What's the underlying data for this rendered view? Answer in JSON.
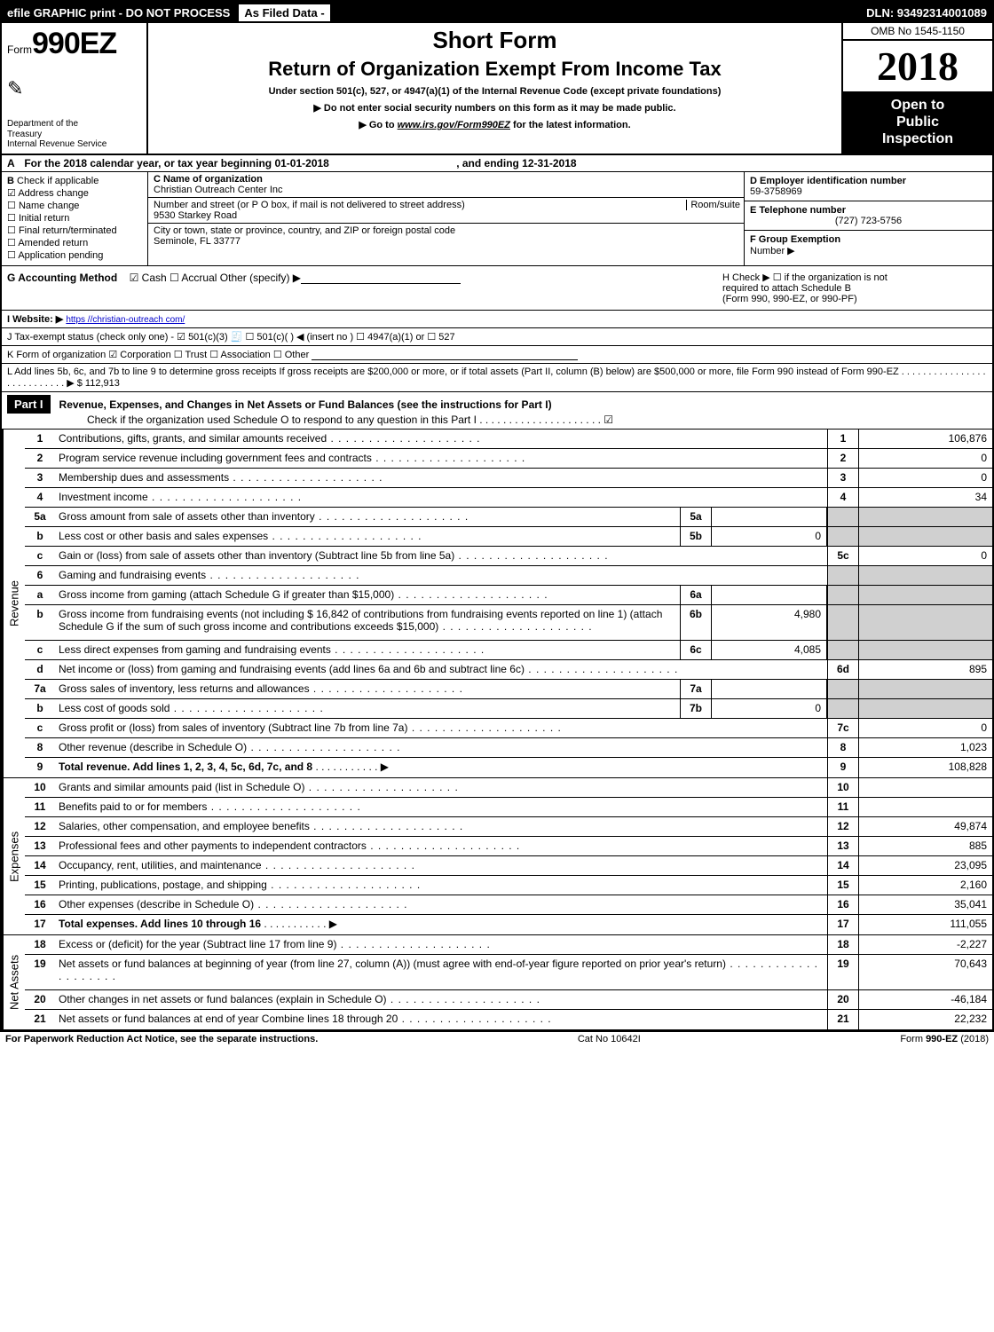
{
  "topbar": {
    "left": "efile GRAPHIC print - DO NOT PROCESS",
    "mid": "As Filed Data -",
    "right": "DLN: 93492314001089"
  },
  "header": {
    "form_prefix": "Form",
    "form_number": "990EZ",
    "dept1": "Department of the",
    "dept2": "Treasury",
    "dept3": "Internal Revenue Service",
    "short_form": "Short Form",
    "return_title": "Return of Organization Exempt From Income Tax",
    "sub1": "Under section 501(c), 527, or 4947(a)(1) of the Internal Revenue Code (except private foundations)",
    "sub2": "▶ Do not enter social security numbers on this form as it may be made public.",
    "sub3_pre": "▶ Go to ",
    "sub3_link": "www.irs.gov/Form990EZ",
    "sub3_post": " for the latest information.",
    "omb": "OMB No 1545-1150",
    "year": "2018",
    "open1": "Open to",
    "open2": "Public",
    "open3": "Inspection"
  },
  "rowA": {
    "label": "A",
    "text1": "For the 2018 calendar year, or tax year beginning 01-01-2018",
    "text2": ", and ending 12-31-2018"
  },
  "B": {
    "label": "B",
    "head": "Check if applicable",
    "items": [
      "Address change",
      "Name change",
      "Initial return",
      "Final return/terminated",
      "Amended return",
      "Application pending"
    ],
    "checked_idx": 0
  },
  "C": {
    "name_label": "C Name of organization",
    "name": "Christian Outreach Center Inc",
    "addr_label": "Number and street (or P O box, if mail is not delivered to street address)",
    "room_label": "Room/suite",
    "addr": "9530 Starkey Road",
    "city_label": "City or town, state or province, country, and ZIP or foreign postal code",
    "city": "Seminole, FL 33777"
  },
  "D": {
    "d_label": "D Employer identification number",
    "d_value": "59-3758969",
    "e_label": "E Telephone number",
    "e_value": "(727) 723-5756",
    "f_label": "F Group Exemption",
    "f_label2": "Number   ▶"
  },
  "G": {
    "label": "G Accounting Method",
    "opts": "☑ Cash   ☐ Accrual   Other (specify) ▶"
  },
  "H": {
    "line1": "H   Check ▶  ☐ if the organization is not",
    "line2": "required to attach Schedule B",
    "line3": "(Form 990, 990-EZ, or 990-PF)"
  },
  "I": {
    "label": "I Website: ▶",
    "link": "https //christian-outreach com/"
  },
  "J": {
    "text": "J Tax-exempt status (check only one) - ☑ 501(c)(3) 🧾 ☐ 501(c)( ) ◀ (insert no ) ☐ 4947(a)(1) or ☐ 527"
  },
  "K": {
    "text": "K Form of organization    ☑ Corporation  ☐ Trust  ☐ Association  ☐ Other"
  },
  "L": {
    "text": "L Add lines 5b, 6c, and 7b to line 9 to determine gross receipts  If gross receipts are $200,000 or more, or if total assets (Part II, column (B) below) are $500,000 or more, file Form 990 instead of Form 990-EZ  .  .  .  .  .  .  .  .  .  .  .  .  .  .  .  .  .  .  .  .  .  .  .  .  .  .  .  ▶ $ 112,913"
  },
  "PartI": {
    "hdr": "Part I",
    "title": "Revenue, Expenses, and Changes in Net Assets or Fund Balances (see the instructions for Part I)",
    "sub": "Check if the organization used Schedule O to respond to any question in this Part I .  .  .  .  .  .  .  .  .  .  .  .  .  .  .  .  .  .  .  .  .  ☑"
  },
  "sections": {
    "revenue_label": "Revenue",
    "expenses_label": "Expenses",
    "netassets_label": "Net Assets"
  },
  "revenue": [
    {
      "n": "1",
      "d": "Contributions, gifts, grants, and similar amounts received",
      "rn": "1",
      "ra": "106,876"
    },
    {
      "n": "2",
      "d": "Program service revenue including government fees and contracts",
      "rn": "2",
      "ra": "0"
    },
    {
      "n": "3",
      "d": "Membership dues and assessments",
      "rn": "3",
      "ra": "0"
    },
    {
      "n": "4",
      "d": "Investment income",
      "rn": "4",
      "ra": "34"
    },
    {
      "n": "5a",
      "d": "Gross amount from sale of assets other than inventory",
      "mn": "5a",
      "ma": "",
      "greyR": true
    },
    {
      "n": "b",
      "d": "Less cost or other basis and sales expenses",
      "mn": "5b",
      "ma": "0",
      "greyR": true
    },
    {
      "n": "c",
      "d": "Gain or (loss) from sale of assets other than inventory (Subtract line 5b from line 5a)",
      "rn": "5c",
      "ra": "0"
    },
    {
      "n": "6",
      "d": "Gaming and fundraising events",
      "greyR": true,
      "greyM": true,
      "noMid": true
    },
    {
      "n": "a",
      "d": "Gross income from gaming (attach Schedule G if greater than $15,000)",
      "mn": "6a",
      "ma": "",
      "greyR": true
    },
    {
      "n": "b",
      "d": "Gross income from fundraising events (not including $  16,842          of contributions from fundraising events reported on line 1) (attach Schedule G if the sum of such gross income and contributions exceeds $15,000)",
      "mn": "6b",
      "ma": "4,980",
      "greyR": true,
      "tall": true
    },
    {
      "n": "c",
      "d": "Less direct expenses from gaming and fundraising events",
      "mn": "6c",
      "ma": "4,085",
      "greyR": true
    },
    {
      "n": "d",
      "d": "Net income or (loss) from gaming and fundraising events (add lines 6a and 6b and subtract line 6c)",
      "rn": "6d",
      "ra": "895"
    },
    {
      "n": "7a",
      "d": "Gross sales of inventory, less returns and allowances",
      "mn": "7a",
      "ma": "",
      "greyR": true
    },
    {
      "n": "b",
      "d": "Less cost of goods sold",
      "mn": "7b",
      "ma": "0",
      "greyR": true
    },
    {
      "n": "c",
      "d": "Gross profit or (loss) from sales of inventory (Subtract line 7b from line 7a)",
      "rn": "7c",
      "ra": "0"
    },
    {
      "n": "8",
      "d": "Other revenue (describe in Schedule O)",
      "rn": "8",
      "ra": "1,023"
    },
    {
      "n": "9",
      "d": "Total revenue. Add lines 1, 2, 3, 4, 5c, 6d, 7c, and 8",
      "rn": "9",
      "ra": "108,828",
      "bold": true,
      "arrow": true
    }
  ],
  "expenses": [
    {
      "n": "10",
      "d": "Grants and similar amounts paid (list in Schedule O)",
      "rn": "10",
      "ra": ""
    },
    {
      "n": "11",
      "d": "Benefits paid to or for members",
      "rn": "11",
      "ra": ""
    },
    {
      "n": "12",
      "d": "Salaries, other compensation, and employee benefits",
      "rn": "12",
      "ra": "49,874"
    },
    {
      "n": "13",
      "d": "Professional fees and other payments to independent contractors",
      "rn": "13",
      "ra": "885"
    },
    {
      "n": "14",
      "d": "Occupancy, rent, utilities, and maintenance",
      "rn": "14",
      "ra": "23,095"
    },
    {
      "n": "15",
      "d": "Printing, publications, postage, and shipping",
      "rn": "15",
      "ra": "2,160"
    },
    {
      "n": "16",
      "d": "Other expenses (describe in Schedule O)",
      "rn": "16",
      "ra": "35,041"
    },
    {
      "n": "17",
      "d": "Total expenses. Add lines 10 through 16",
      "rn": "17",
      "ra": "111,055",
      "bold": true,
      "arrow": true
    }
  ],
  "netassets": [
    {
      "n": "18",
      "d": "Excess or (deficit) for the year (Subtract line 17 from line 9)",
      "rn": "18",
      "ra": "-2,227"
    },
    {
      "n": "19",
      "d": "Net assets or fund balances at beginning of year (from line 27, column (A)) (must agree with end-of-year figure reported on prior year's return)",
      "rn": "19",
      "ra": "70,643",
      "tall": true
    },
    {
      "n": "20",
      "d": "Other changes in net assets or fund balances (explain in Schedule O)",
      "rn": "20",
      "ra": "-46,184"
    },
    {
      "n": "21",
      "d": "Net assets or fund balances at end of year  Combine lines 18 through 20",
      "rn": "21",
      "ra": "22,232"
    }
  ],
  "footer": {
    "left": "For Paperwork Reduction Act Notice, see the separate instructions.",
    "mid": "Cat No 10642I",
    "right": "Form 990-EZ (2018)"
  },
  "colors": {
    "black": "#000000",
    "white": "#ffffff",
    "grey": "#d0d0d0",
    "link": "#0000cc"
  }
}
